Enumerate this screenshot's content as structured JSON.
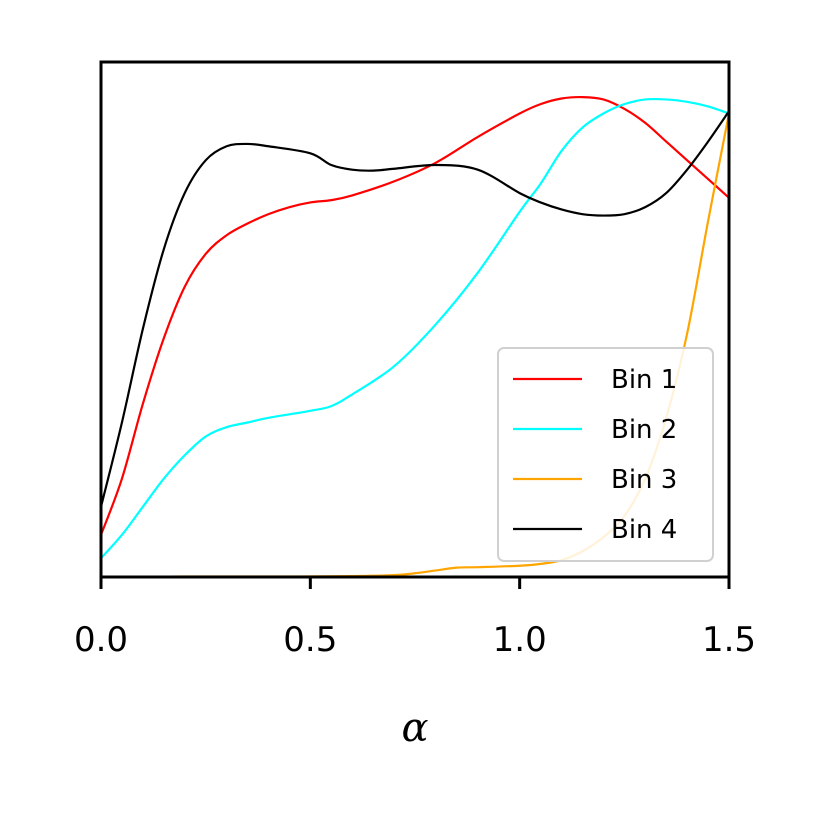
{
  "chart_data": {
    "type": "line",
    "xlabel": "α",
    "ylabel": "",
    "title": "",
    "xlim": [
      0.0,
      1.5
    ],
    "ylim": [
      0.0,
      1.1
    ],
    "x_ticks": [
      "0.0",
      "0.5",
      "1.0",
      "1.5"
    ],
    "y_ticks_shown": false,
    "legend_position": "lower-right",
    "series": [
      {
        "name": "Bin 1",
        "color": "#ff0000",
        "x": [
          0.0,
          0.05,
          0.1,
          0.15,
          0.2,
          0.25,
          0.3,
          0.35,
          0.4,
          0.45,
          0.5,
          0.55,
          0.6,
          0.7,
          0.8,
          0.9,
          1.0,
          1.05,
          1.1,
          1.15,
          1.2,
          1.25,
          1.3,
          1.35,
          1.4,
          1.45,
          1.5
        ],
        "y": [
          0.09,
          0.21,
          0.37,
          0.51,
          0.62,
          0.69,
          0.73,
          0.755,
          0.775,
          0.79,
          0.8,
          0.805,
          0.815,
          0.845,
          0.885,
          0.94,
          0.99,
          1.01,
          1.022,
          1.025,
          1.02,
          1.0,
          0.97,
          0.93,
          0.89,
          0.85,
          0.81
        ]
      },
      {
        "name": "Bin 2",
        "color": "#00ffff",
        "x": [
          0.0,
          0.05,
          0.1,
          0.15,
          0.2,
          0.25,
          0.3,
          0.35,
          0.4,
          0.5,
          0.55,
          0.6,
          0.7,
          0.8,
          0.9,
          1.0,
          1.05,
          1.1,
          1.15,
          1.2,
          1.25,
          1.3,
          1.35,
          1.4,
          1.45,
          1.5
        ],
        "y": [
          0.04,
          0.09,
          0.15,
          0.21,
          0.26,
          0.3,
          0.32,
          0.33,
          0.34,
          0.355,
          0.365,
          0.39,
          0.45,
          0.54,
          0.65,
          0.78,
          0.84,
          0.91,
          0.96,
          0.99,
          1.01,
          1.02,
          1.02,
          1.015,
          1.005,
          0.99
        ]
      },
      {
        "name": "Bin 3",
        "color": "#ffa500",
        "x": [
          0.0,
          0.2,
          0.4,
          0.6,
          0.7,
          0.75,
          0.8,
          0.85,
          0.9,
          1.0,
          1.05,
          1.1,
          1.15,
          1.2,
          1.25,
          1.3,
          1.35,
          1.4,
          1.45,
          1.5
        ],
        "y": [
          0.0,
          0.001,
          0.001,
          0.002,
          0.004,
          0.008,
          0.014,
          0.02,
          0.021,
          0.024,
          0.028,
          0.036,
          0.055,
          0.085,
          0.13,
          0.21,
          0.34,
          0.52,
          0.76,
          0.99
        ]
      },
      {
        "name": "Bin 4",
        "color": "#000000",
        "x": [
          0.0,
          0.05,
          0.1,
          0.15,
          0.2,
          0.25,
          0.3,
          0.35,
          0.4,
          0.5,
          0.55,
          0.6,
          0.65,
          0.7,
          0.8,
          0.9,
          1.0,
          1.05,
          1.1,
          1.15,
          1.2,
          1.25,
          1.3,
          1.35,
          1.4,
          1.45,
          1.5
        ],
        "y": [
          0.15,
          0.33,
          0.53,
          0.7,
          0.82,
          0.89,
          0.92,
          0.925,
          0.92,
          0.905,
          0.88,
          0.87,
          0.868,
          0.872,
          0.88,
          0.87,
          0.82,
          0.8,
          0.785,
          0.775,
          0.772,
          0.775,
          0.79,
          0.82,
          0.87,
          0.93,
          0.995
        ]
      }
    ]
  }
}
